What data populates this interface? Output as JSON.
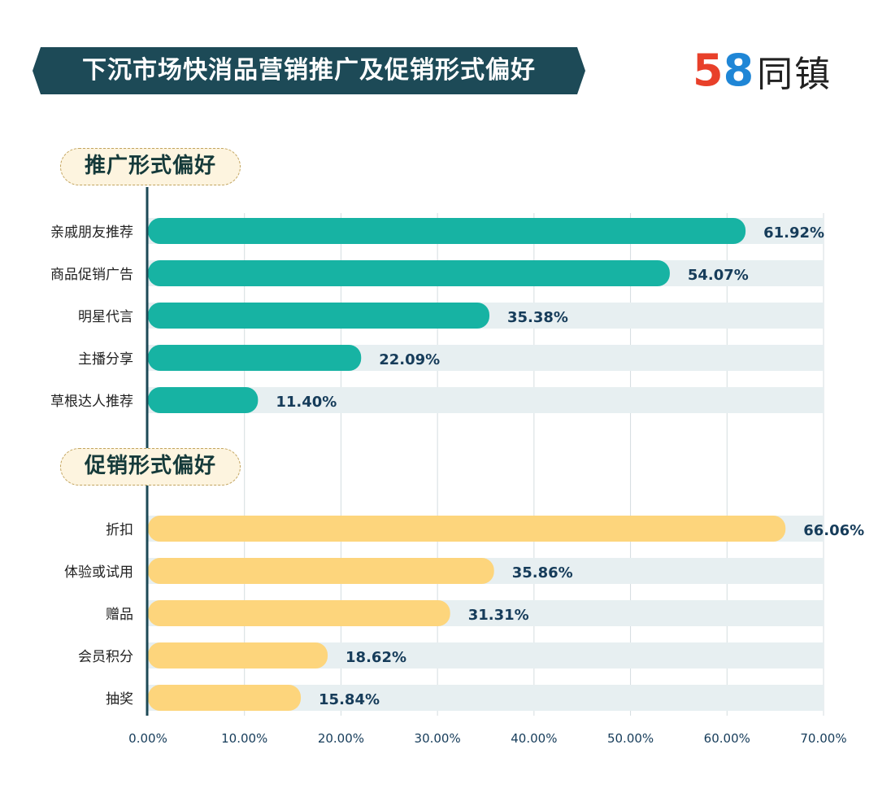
{
  "title": "下沉市场快消品营销推广及促销形式偏好",
  "logo": {
    "digit1": "5",
    "digit2": "8",
    "text": "同镇",
    "color1": "#e8402a",
    "color2": "#1f86d6",
    "color3": "#f7a21b"
  },
  "colors": {
    "banner": "#1d4a57",
    "promotion_bar": "#17b3a3",
    "sales_bar": "#fdd57c",
    "track": "#e7eff1",
    "axis": "#1d4a57",
    "grid": "#d4dde0"
  },
  "chart_data": {
    "type": "bar",
    "orientation": "horizontal",
    "title": "下沉市场快消品营销推广及促销形式偏好",
    "xlim": [
      0,
      70
    ],
    "x_ticks": [
      "0.00%",
      "10.00%",
      "20.00%",
      "30.00%",
      "40.00%",
      "50.00%",
      "60.00%",
      "70.00%"
    ],
    "groups": [
      {
        "name": "推广形式偏好",
        "categories": [
          "亲戚朋友推荐",
          "商品促销广告",
          "明星代言",
          "主播分享",
          "草根达人推荐"
        ],
        "values": [
          61.92,
          54.07,
          35.38,
          22.09,
          11.4
        ],
        "labels": [
          "61.92%",
          "54.07%",
          "35.38%",
          "22.09%",
          "11.40%"
        ]
      },
      {
        "name": "促销形式偏好",
        "categories": [
          "折扣",
          "体验或试用",
          "赠品",
          "会员积分",
          "抽奖"
        ],
        "values": [
          66.06,
          35.86,
          31.31,
          18.62,
          15.84
        ],
        "labels": [
          "66.06%",
          "35.86%",
          "31.31%",
          "18.62%",
          "15.84%"
        ]
      }
    ]
  }
}
